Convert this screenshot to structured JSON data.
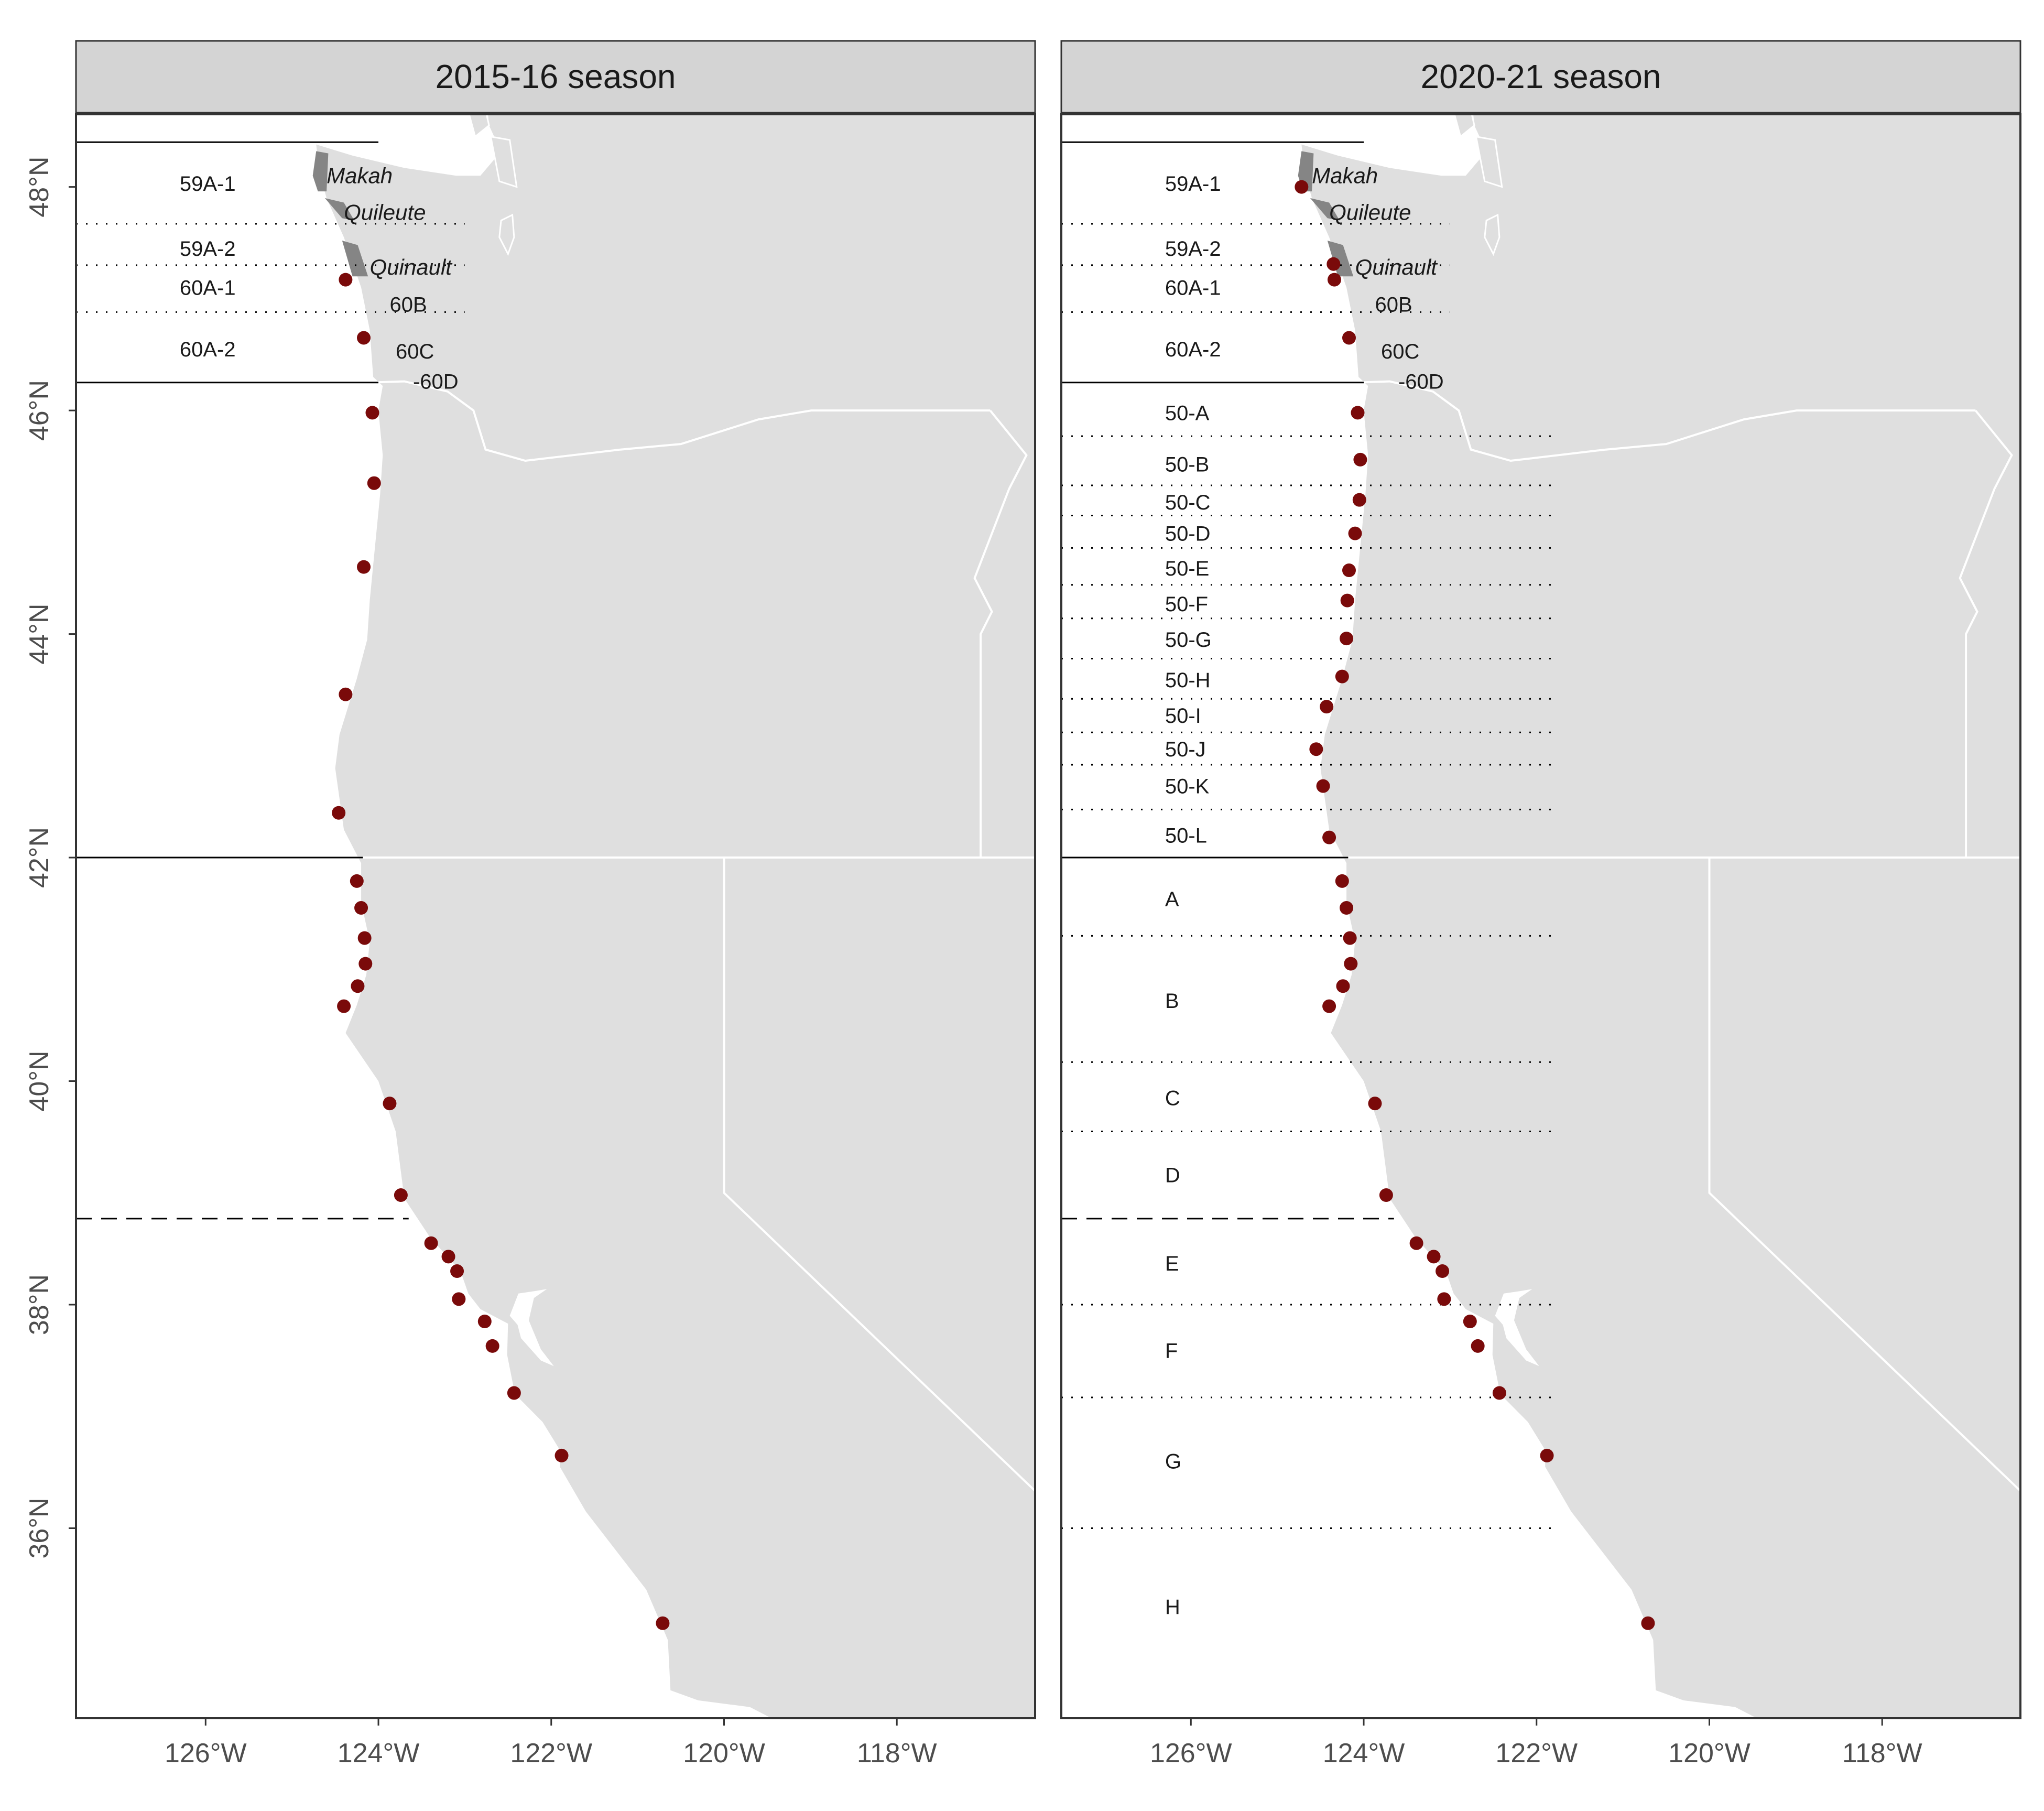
{
  "figure": {
    "colors": {
      "land": "#dfdfdf",
      "water": "#ffffff",
      "state_border": "#ffffff",
      "strip": "#d4d4d4",
      "panel_border": "#333333",
      "point": "#7a0a0a",
      "tribal_area": "#858585",
      "axis_text": "#4d4d4d"
    },
    "x_axis": {
      "ticks": [
        -126,
        -124,
        -122,
        -120,
        -118
      ],
      "labels": [
        "126°W",
        "124°W",
        "122°W",
        "120°W",
        "118°W"
      ],
      "range": [
        -127.5,
        -116.4
      ]
    },
    "y_axis": {
      "ticks": [
        36,
        38,
        40,
        42,
        44,
        46,
        48
      ],
      "labels": [
        "36°N",
        "38°N",
        "40°N",
        "42°N",
        "44°N",
        "46°N",
        "48°N"
      ],
      "range": [
        34.3,
        48.65
      ]
    },
    "tribal_labels": [
      "Makah",
      "Quileute",
      "Quinault"
    ],
    "lat_lines": {
      "solid": [
        48.4,
        46.25,
        42.0
      ],
      "dashed": [
        38.77
      ],
      "dotted_washington": [
        47.67,
        47.3,
        46.88
      ]
    },
    "panels": [
      {
        "title": "2015-16 season",
        "zone_labels": [
          {
            "text": "59A-1",
            "lon": -126.3,
            "lat": 48.03
          },
          {
            "text": "59A-2",
            "lon": -126.3,
            "lat": 47.45
          },
          {
            "text": "60A-1",
            "lon": -126.3,
            "lat": 47.1
          },
          {
            "text": "60A-2",
            "lon": -126.3,
            "lat": 46.55
          },
          {
            "text": "60B",
            "lon": -123.87,
            "lat": 46.95
          },
          {
            "text": "60C",
            "lon": -123.8,
            "lat": 46.53
          },
          {
            "text": "-60D",
            "lon": -123.6,
            "lat": 46.26
          }
        ],
        "dotted_lines": [],
        "stations": [
          [
            -124.38,
            47.17
          ],
          [
            -124.17,
            46.65
          ],
          [
            -124.07,
            45.98
          ],
          [
            -124.05,
            45.35
          ],
          [
            -124.17,
            44.6
          ],
          [
            -124.38,
            43.46
          ],
          [
            -124.46,
            42.4
          ],
          [
            -124.25,
            41.79
          ],
          [
            -124.2,
            41.55
          ],
          [
            -124.16,
            41.28
          ],
          [
            -124.15,
            41.05
          ],
          [
            -124.24,
            40.85
          ],
          [
            -124.4,
            40.67
          ],
          [
            -123.87,
            39.8
          ],
          [
            -123.74,
            38.98
          ],
          [
            -123.39,
            38.55
          ],
          [
            -123.19,
            38.43
          ],
          [
            -123.09,
            38.3
          ],
          [
            -123.07,
            38.05
          ],
          [
            -122.77,
            37.85
          ],
          [
            -122.68,
            37.63
          ],
          [
            -122.43,
            37.21
          ],
          [
            -121.88,
            36.65
          ],
          [
            -120.71,
            35.15
          ]
        ]
      },
      {
        "title": "2020-21 season",
        "zone_labels": [
          {
            "text": "59A-1",
            "lon": -126.3,
            "lat": 48.03
          },
          {
            "text": "59A-2",
            "lon": -126.3,
            "lat": 47.45
          },
          {
            "text": "60A-1",
            "lon": -126.3,
            "lat": 47.1
          },
          {
            "text": "60A-2",
            "lon": -126.3,
            "lat": 46.55
          },
          {
            "text": "60B",
            "lon": -123.87,
            "lat": 46.95
          },
          {
            "text": "60C",
            "lon": -123.8,
            "lat": 46.53
          },
          {
            "text": "-60D",
            "lon": -123.6,
            "lat": 46.26
          },
          {
            "text": "50-A",
            "lon": -126.3,
            "lat": 45.98
          },
          {
            "text": "50-B",
            "lon": -126.3,
            "lat": 45.52
          },
          {
            "text": "50-C",
            "lon": -126.3,
            "lat": 45.18
          },
          {
            "text": "50-D",
            "lon": -126.3,
            "lat": 44.9
          },
          {
            "text": "50-E",
            "lon": -126.3,
            "lat": 44.59
          },
          {
            "text": "50-F",
            "lon": -126.3,
            "lat": 44.27
          },
          {
            "text": "50-G",
            "lon": -126.3,
            "lat": 43.95
          },
          {
            "text": "50-H",
            "lon": -126.3,
            "lat": 43.59
          },
          {
            "text": "50-I",
            "lon": -126.3,
            "lat": 43.27
          },
          {
            "text": "50-J",
            "lon": -126.3,
            "lat": 42.97
          },
          {
            "text": "50-K",
            "lon": -126.3,
            "lat": 42.64
          },
          {
            "text": "50-L",
            "lon": -126.3,
            "lat": 42.2
          },
          {
            "text": "A",
            "lon": -126.3,
            "lat": 41.63
          },
          {
            "text": "B",
            "lon": -126.3,
            "lat": 40.72
          },
          {
            "text": "C",
            "lon": -126.3,
            "lat": 39.85
          },
          {
            "text": "D",
            "lon": -126.3,
            "lat": 39.16
          },
          {
            "text": "E",
            "lon": -126.3,
            "lat": 38.37
          },
          {
            "text": "F",
            "lon": -126.3,
            "lat": 37.59
          },
          {
            "text": "G",
            "lon": -126.3,
            "lat": 36.6
          },
          {
            "text": "H",
            "lon": -126.3,
            "lat": 35.3
          }
        ],
        "dotted_lines": [
          45.77,
          45.33,
          45.06,
          44.77,
          44.44,
          44.14,
          43.78,
          43.42,
          43.12,
          42.83,
          42.43,
          41.3,
          40.17,
          39.55,
          38.0,
          37.17,
          36.0
        ],
        "stations": [
          [
            -124.72,
            48.0
          ],
          [
            -124.35,
            47.31
          ],
          [
            -124.34,
            47.17
          ],
          [
            -124.17,
            46.65
          ],
          [
            -124.07,
            45.98
          ],
          [
            -124.04,
            45.56
          ],
          [
            -124.05,
            45.2
          ],
          [
            -124.1,
            44.9
          ],
          [
            -124.17,
            44.57
          ],
          [
            -124.19,
            44.3
          ],
          [
            -124.2,
            43.96
          ],
          [
            -124.25,
            43.62
          ],
          [
            -124.43,
            43.35
          ],
          [
            -124.55,
            42.97
          ],
          [
            -124.47,
            42.64
          ],
          [
            -124.4,
            42.18
          ],
          [
            -124.25,
            41.79
          ],
          [
            -124.2,
            41.55
          ],
          [
            -124.16,
            41.28
          ],
          [
            -124.15,
            41.05
          ],
          [
            -124.24,
            40.85
          ],
          [
            -124.4,
            40.67
          ],
          [
            -123.87,
            39.8
          ],
          [
            -123.74,
            38.98
          ],
          [
            -123.39,
            38.55
          ],
          [
            -123.19,
            38.43
          ],
          [
            -123.09,
            38.3
          ],
          [
            -123.07,
            38.05
          ],
          [
            -122.77,
            37.85
          ],
          [
            -122.68,
            37.63
          ],
          [
            -122.43,
            37.21
          ],
          [
            -121.88,
            36.65
          ],
          [
            -120.71,
            35.15
          ]
        ]
      }
    ]
  }
}
